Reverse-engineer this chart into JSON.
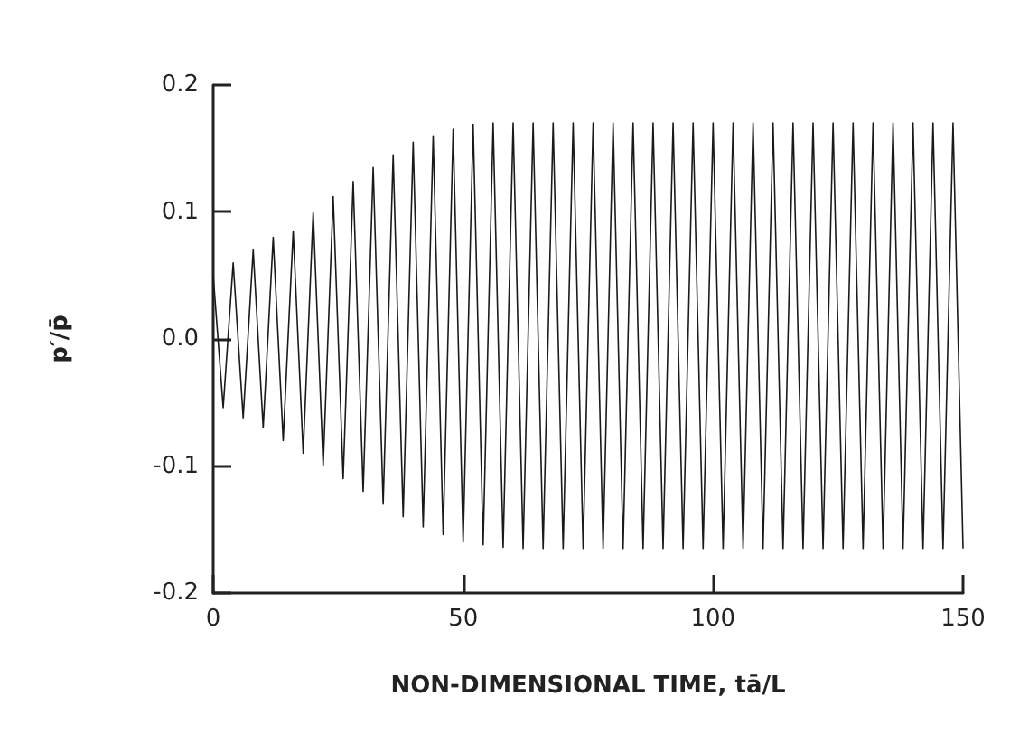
{
  "chart_data": {
    "type": "line",
    "xlabel": "NON-DIMENSIONAL TIME, tā/L",
    "ylabel": "p′/p̄",
    "x": [
      0,
      2,
      4,
      6,
      8,
      10,
      12,
      14,
      16,
      18,
      20,
      22,
      24,
      26,
      28,
      30,
      32,
      34,
      36,
      38,
      40,
      42,
      44,
      46,
      48,
      50,
      52,
      54,
      56,
      58,
      60,
      62,
      64,
      66,
      68,
      70,
      72,
      74,
      76,
      78,
      80,
      82,
      84,
      86,
      88,
      90,
      92,
      94,
      96,
      98,
      100,
      102,
      104,
      106,
      108,
      110,
      112,
      114,
      116,
      118,
      120,
      122,
      124,
      126,
      128,
      130,
      132,
      134,
      136,
      138,
      140,
      142,
      144,
      146,
      148,
      150
    ],
    "series": [
      {
        "color": "#1a1a1a",
        "values": [
          0.05,
          -0.054,
          0.06,
          -0.062,
          0.07,
          -0.07,
          0.08,
          -0.08,
          0.085,
          -0.09,
          0.1,
          -0.1,
          0.112,
          -0.11,
          0.124,
          -0.12,
          0.135,
          -0.13,
          0.145,
          -0.14,
          0.155,
          -0.148,
          0.16,
          -0.154,
          0.165,
          -0.16,
          0.169,
          -0.162,
          0.17,
          -0.164,
          0.17,
          -0.165,
          0.17,
          -0.165,
          0.17,
          -0.165,
          0.17,
          -0.165,
          0.17,
          -0.165,
          0.17,
          -0.165,
          0.17,
          -0.165,
          0.17,
          -0.165,
          0.17,
          -0.165,
          0.17,
          -0.165,
          0.17,
          -0.165,
          0.17,
          -0.165,
          0.17,
          -0.165,
          0.17,
          -0.165,
          0.17,
          -0.165,
          0.17,
          -0.165,
          0.17,
          -0.165,
          0.17,
          -0.165,
          0.17,
          -0.165,
          0.17,
          -0.165,
          0.17,
          -0.165,
          0.17,
          -0.165,
          0.17,
          -0.165
        ]
      }
    ],
    "xlim": [
      0,
      150
    ],
    "xticks": [
      0,
      50,
      100,
      150
    ],
    "ylim": [
      -0.2,
      0.2
    ],
    "yticks": [
      {
        "value": -0.2,
        "label": "-0.2"
      },
      {
        "value": -0.1,
        "label": "-0.1"
      },
      {
        "value": 0,
        "label": "0.0"
      },
      {
        "value": 0.1,
        "label": "0.1"
      },
      {
        "value": 0.2,
        "label": "0.2"
      }
    ],
    "marker": "none",
    "line_style": "solid"
  }
}
